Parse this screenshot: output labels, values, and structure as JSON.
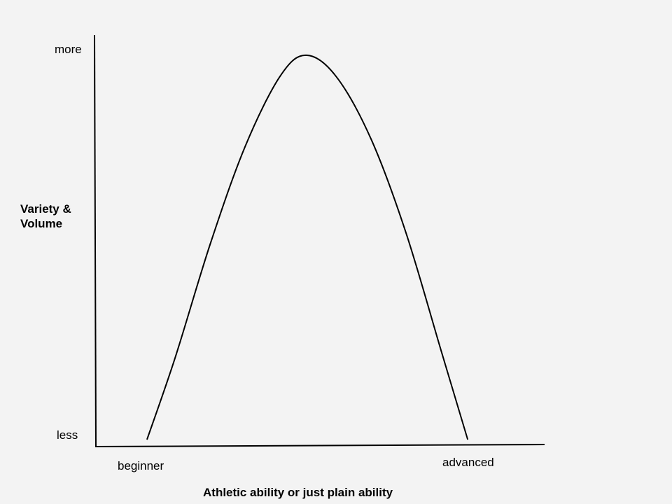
{
  "chart_data": {
    "type": "line",
    "title": "",
    "xlabel": "Athletic ability or just plain ability",
    "ylabel": "Variety & Volume",
    "x_tick_labels": [
      "beginner",
      "advanced"
    ],
    "y_tick_labels": [
      "less",
      "more"
    ],
    "xlim": [
      0,
      100
    ],
    "ylim": [
      0,
      100
    ],
    "grid": false,
    "legend": "none",
    "line_color": "#000000",
    "background": "#f3f3f3",
    "series": [
      {
        "x": [
          11.4,
          17.7,
          25.5,
          33.3,
          41.1,
          46.9,
          53.6,
          61.4,
          69.2,
          77.0,
          83.0
        ],
        "y": [
          0,
          21,
          50,
          75,
          93,
          98.4,
          93,
          77,
          53,
          23,
          0
        ]
      }
    ]
  }
}
